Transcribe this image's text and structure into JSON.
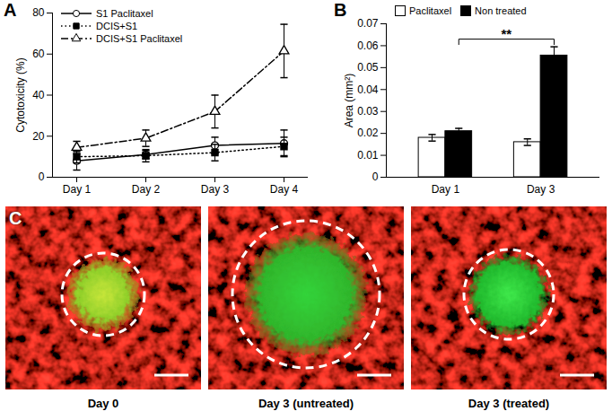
{
  "chart_data": [
    {
      "type": "line",
      "panel": "A",
      "x": [
        "Day 1",
        "Day 2",
        "Day 3",
        "Day 4"
      ],
      "ylabel": "Cytotoxicity (%)",
      "ylim": [
        0,
        80
      ],
      "yticks": [
        0,
        20,
        40,
        60,
        80
      ],
      "legend": "upper left",
      "series": [
        {
          "name": "S1 Paclitaxel",
          "color": "#000000",
          "marker": "open_circle",
          "line_style": "solid",
          "values": [
            8,
            11,
            15.5,
            16.5
          ],
          "errors": [
            4.5,
            2,
            4,
            6.5
          ]
        },
        {
          "name": "DCIS+S1",
          "color": "#000000",
          "marker": "filled_square",
          "line_style": "dotted",
          "values": [
            10,
            10.5,
            12,
            15
          ],
          "errors": [
            3,
            3,
            4,
            4.5
          ]
        },
        {
          "name": "DCIS+S1 Paclitaxel",
          "color": "#000000",
          "marker": "open_triangle",
          "line_style": "dashdot",
          "values": [
            14.5,
            19,
            32,
            61.5
          ],
          "errors": [
            3,
            4,
            8,
            13
          ]
        }
      ]
    },
    {
      "type": "bar",
      "panel": "B",
      "categories": [
        "Day 1",
        "Day 3"
      ],
      "ylabel": "Area (mm²)",
      "ylim": [
        0,
        0.07
      ],
      "yticks": [
        0,
        0.01,
        0.02,
        0.03,
        0.04,
        0.05,
        0.06,
        0.07
      ],
      "legend": "top",
      "series": [
        {
          "name": "Paclitaxel",
          "color": "#ffffff",
          "values": [
            0.018,
            0.016
          ],
          "errors": [
            0.0015,
            0.0015
          ]
        },
        {
          "name": "Non treated",
          "color": "#000000",
          "values": [
            0.021,
            0.0555
          ],
          "errors": [
            0.0013,
            0.004
          ]
        }
      ],
      "annotations": [
        {
          "text": "**",
          "series": "Non treated",
          "from": "Day 1",
          "to": "Day 3"
        }
      ]
    }
  ],
  "image_panel": {
    "panel": "C",
    "images": [
      {
        "caption": "Day 0"
      },
      {
        "caption": "Day 3 (untreated)"
      },
      {
        "caption": "Day 3 (treated)"
      }
    ]
  }
}
